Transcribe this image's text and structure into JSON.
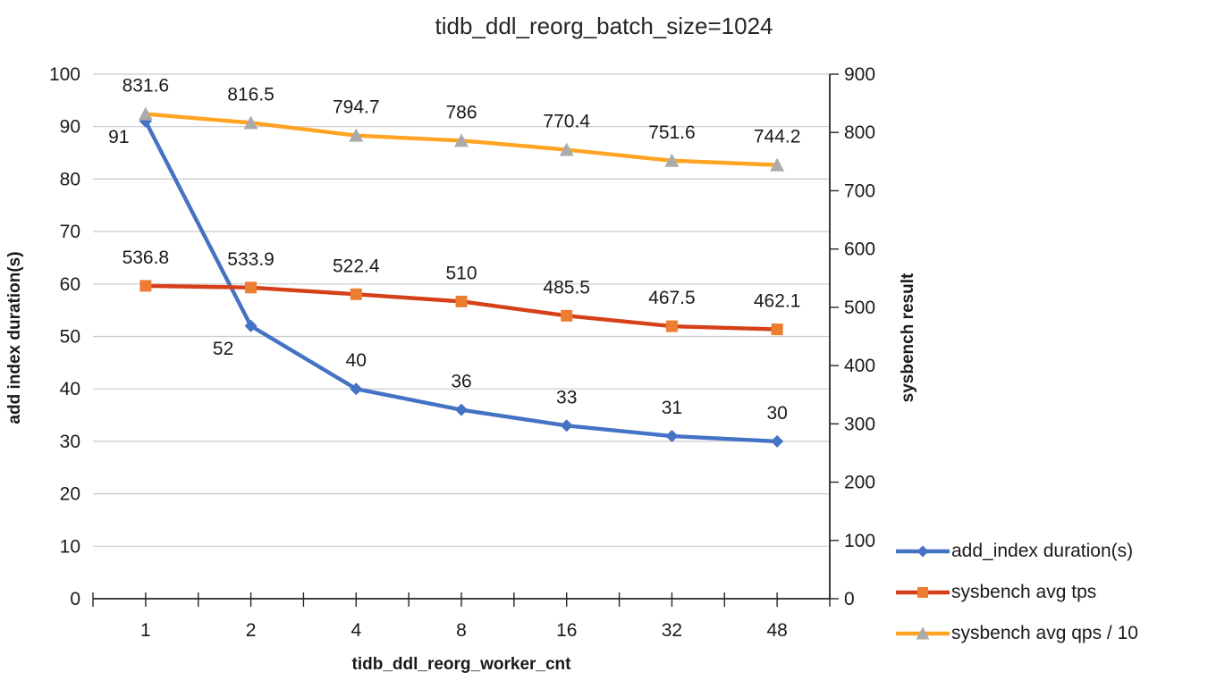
{
  "chart_data": {
    "type": "line",
    "title": "tidb_ddl_reorg_batch_size=1024",
    "xlabel": "tidb_ddl_reorg_worker_cnt",
    "ylabel_left": "add index duration(s)",
    "ylabel_right": "sysbench result",
    "categories": [
      "1",
      "2",
      "4",
      "8",
      "16",
      "32",
      "48"
    ],
    "left_axis": {
      "min": 0,
      "max": 100,
      "step": 10
    },
    "right_axis": {
      "min": 0,
      "max": 900,
      "step": 100
    },
    "grid": true,
    "legend_position": "bottom-right",
    "colors": {
      "gridline": "#c9c9c9",
      "axis_line": "#262626",
      "text": "#1a1a1a"
    },
    "series": [
      {
        "name": "add_index duration(s)",
        "axis": "left",
        "values": [
          91,
          52,
          40,
          36,
          33,
          31,
          30
        ],
        "labels": [
          "91",
          "52",
          "40",
          "36",
          "33",
          "31",
          "30"
        ],
        "color": "#4472c4",
        "marker": "diamond",
        "marker_color": "#4472c4"
      },
      {
        "name": "sysbench avg tps",
        "axis": "right",
        "values": [
          536.8,
          533.9,
          522.4,
          510,
          485.5,
          467.5,
          462.1
        ],
        "labels": [
          "536.8",
          "533.9",
          "522.4",
          "510",
          "485.5",
          "467.5",
          "462.1"
        ],
        "color": "#d64018",
        "marker": "square",
        "marker_color": "#ed7d31"
      },
      {
        "name": "sysbench avg qps / 10",
        "axis": "right",
        "values": [
          831.6,
          816.5,
          794.7,
          786,
          770.4,
          751.6,
          744.2
        ],
        "labels": [
          "831.6",
          "816.5",
          "794.7",
          "786",
          "770.4",
          "751.6",
          "744.2"
        ],
        "color": "#ffa422",
        "marker": "triangle",
        "marker_color": "#ababab"
      }
    ]
  }
}
